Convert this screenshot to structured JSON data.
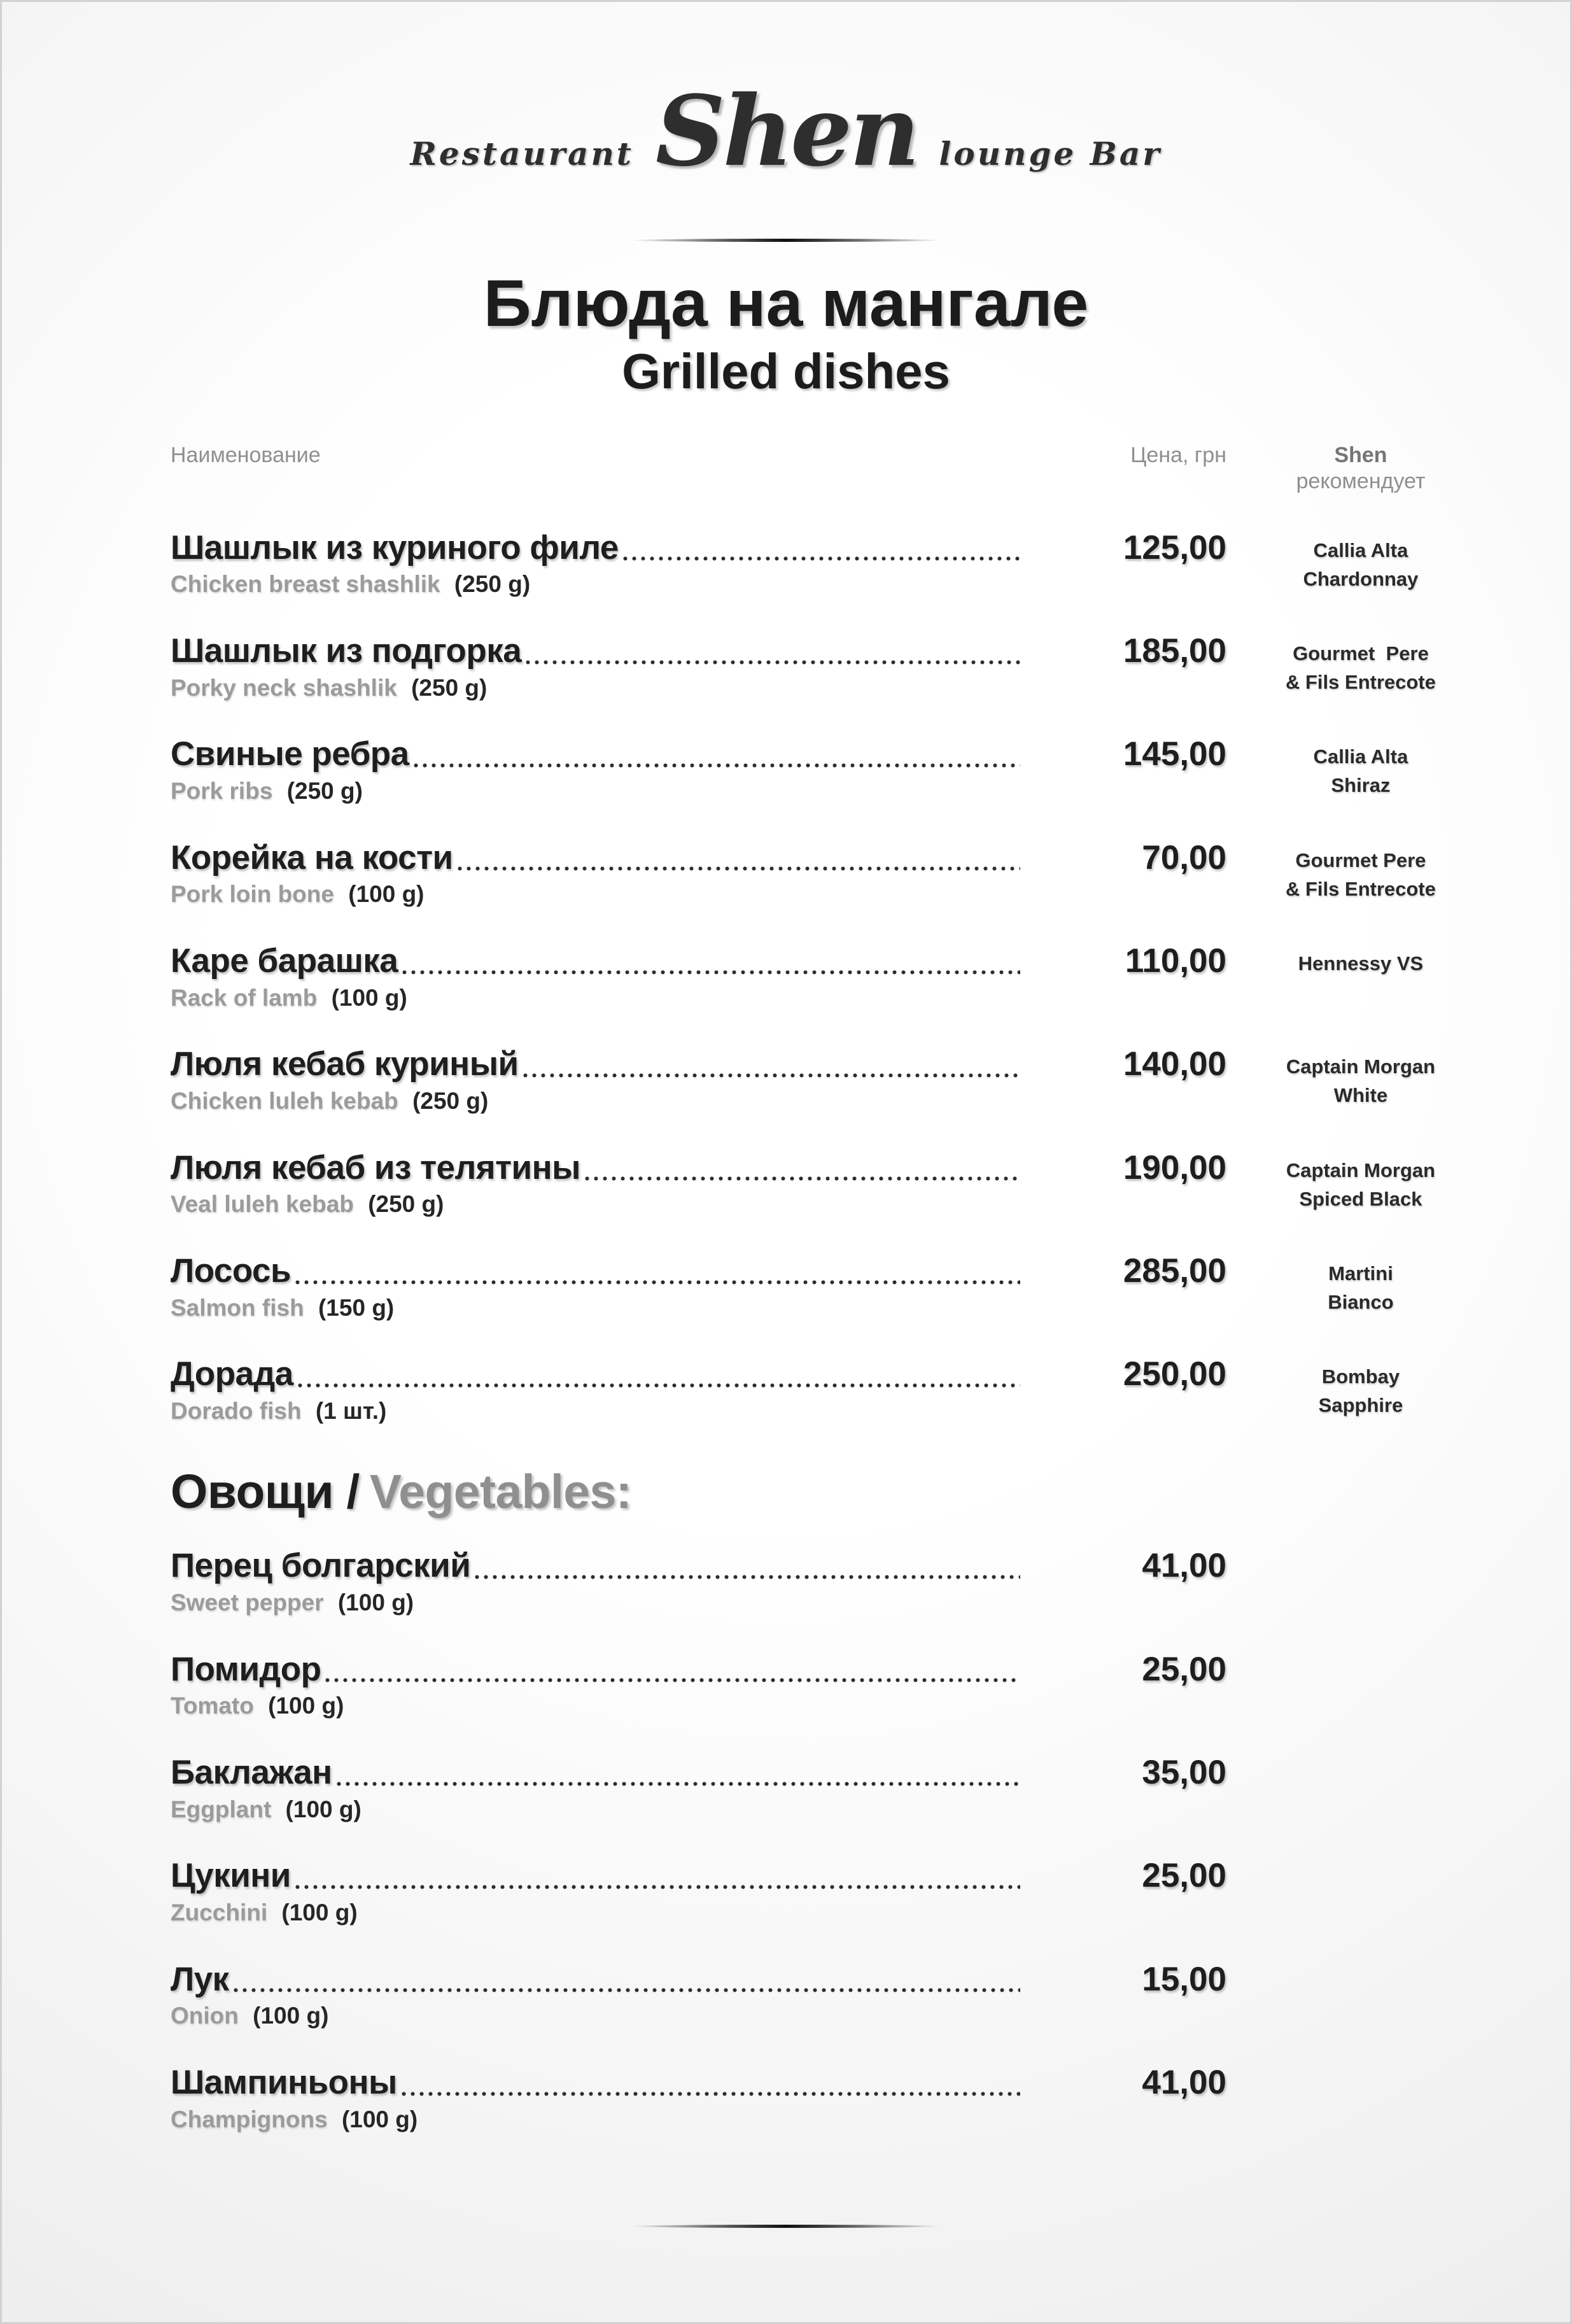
{
  "colors": {
    "ink": "#1e1e1e",
    "muted_gray": "#9b9b9b",
    "header_gray": "#8f8f8f"
  },
  "logo": {
    "restaurant": "Restaurant",
    "name": "Shen",
    "lounge": "lounge Bar"
  },
  "title": {
    "ru": "Блюда на мангале",
    "en": "Grilled dishes"
  },
  "table_head": {
    "name": "Наименование",
    "price": "Цена, грн",
    "rec_brand": "Shen",
    "rec_word": "рекомендует"
  },
  "grilled_items": [
    {
      "name_ru": "Шашлык из куриного филе",
      "price": "125,00",
      "rec": "Callia Alta\nChardonnay",
      "desc_en": "Chicken breast shashlik",
      "portion": "(250 g)"
    },
    {
      "name_ru": "Шашлык из подгорка",
      "price": "185,00",
      "rec": "Gourmet  Pere\n& Fils Entrecote",
      "desc_en": "Porky neck shashlik",
      "portion": "(250 g)"
    },
    {
      "name_ru": "Свиные ребра",
      "price": "145,00",
      "rec": "Callia Alta\nShiraz",
      "desc_en": "Pork ribs",
      "portion": "(250 g)"
    },
    {
      "name_ru": "Корейка на кости",
      "price": "70,00",
      "rec": "Gourmet Pere\n& Fils Entrecote",
      "desc_en": "Pork loin bone",
      "portion": "(100 g)"
    },
    {
      "name_ru": "Каре барашка",
      "price": "110,00",
      "rec": "Hennessy VS",
      "desc_en": "Rack of lamb",
      "portion": "(100 g)"
    },
    {
      "name_ru": "Люля кебаб куриный",
      "price": "140,00",
      "rec": "Captain Morgan\nWhite",
      "desc_en": "Chicken luleh kebab",
      "portion": "(250 g)"
    },
    {
      "name_ru": "Люля кебаб из телятины",
      "price": "190,00",
      "rec": "Captain Morgan\nSpiced Black",
      "desc_en": "Veal luleh kebab",
      "portion": "(250 g)"
    },
    {
      "name_ru": "Лосось",
      "price": "285,00",
      "rec": "Martini\nBianco",
      "desc_en": "Salmon fish",
      "portion": "(150 g)"
    },
    {
      "name_ru": "Дорада",
      "price": "250,00",
      "rec": "Bombay\nSapphire",
      "desc_en": "Dorado fish",
      "portion": "(1 шт.)"
    }
  ],
  "vegetables_section": {
    "title_ru": "Овощи /",
    "title_en": "Vegetables:"
  },
  "vegetable_items": [
    {
      "name_ru": "Перец болгарский",
      "price": "41,00",
      "desc_en": "Sweet pepper",
      "portion": "(100 g)"
    },
    {
      "name_ru": "Помидор",
      "price": "25,00",
      "desc_en": "Tomato",
      "portion": "(100 g)"
    },
    {
      "name_ru": "Баклажан",
      "price": "35,00",
      "desc_en": "Eggplant",
      "portion": "(100 g)"
    },
    {
      "name_ru": "Цукини",
      "price": "25,00",
      "desc_en": "Zucchini",
      "portion": "(100 g)"
    },
    {
      "name_ru": "Лук",
      "price": "15,00",
      "desc_en": "Onion",
      "portion": "(100 g)"
    },
    {
      "name_ru": "Шампиньоны",
      "price": "41,00",
      "desc_en": "Champignons",
      "portion": "(100 g)"
    }
  ]
}
